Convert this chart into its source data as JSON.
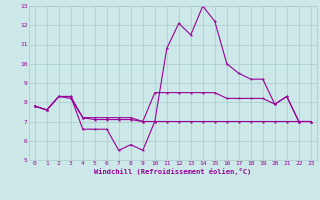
{
  "xlabel": "Windchill (Refroidissement éolien,°C)",
  "background_color": "#cce8e8",
  "grid_color": "#aacccc",
  "line_color": "#990099",
  "x": [
    0,
    1,
    2,
    3,
    4,
    5,
    6,
    7,
    8,
    9,
    10,
    11,
    12,
    13,
    14,
    15,
    16,
    17,
    18,
    19,
    20,
    21,
    22,
    23
  ],
  "line1": [
    7.8,
    7.6,
    8.3,
    8.3,
    6.6,
    6.6,
    6.6,
    5.5,
    5.8,
    5.5,
    7.0,
    10.8,
    12.1,
    11.5,
    13.0,
    12.2,
    10.0,
    9.5,
    9.2,
    9.2,
    7.9,
    8.3,
    7.0,
    7.0
  ],
  "line2": [
    7.8,
    7.6,
    8.3,
    8.3,
    7.2,
    7.2,
    7.2,
    7.2,
    7.2,
    7.0,
    8.5,
    8.5,
    8.5,
    8.5,
    8.5,
    8.5,
    8.2,
    8.2,
    8.2,
    8.2,
    7.9,
    8.3,
    7.0,
    7.0
  ],
  "line3": [
    7.8,
    7.6,
    8.3,
    8.2,
    7.2,
    7.1,
    7.1,
    7.1,
    7.1,
    7.0,
    7.0,
    7.0,
    7.0,
    7.0,
    7.0,
    7.0,
    7.0,
    7.0,
    7.0,
    7.0,
    7.0,
    7.0,
    7.0,
    7.0
  ],
  "ylim": [
    5,
    13
  ],
  "xlim": [
    -0.5,
    23.5
  ],
  "yticks": [
    5,
    6,
    7,
    8,
    9,
    10,
    11,
    12,
    13
  ],
  "xticks": [
    0,
    1,
    2,
    3,
    4,
    5,
    6,
    7,
    8,
    9,
    10,
    11,
    12,
    13,
    14,
    15,
    16,
    17,
    18,
    19,
    20,
    21,
    22,
    23
  ]
}
